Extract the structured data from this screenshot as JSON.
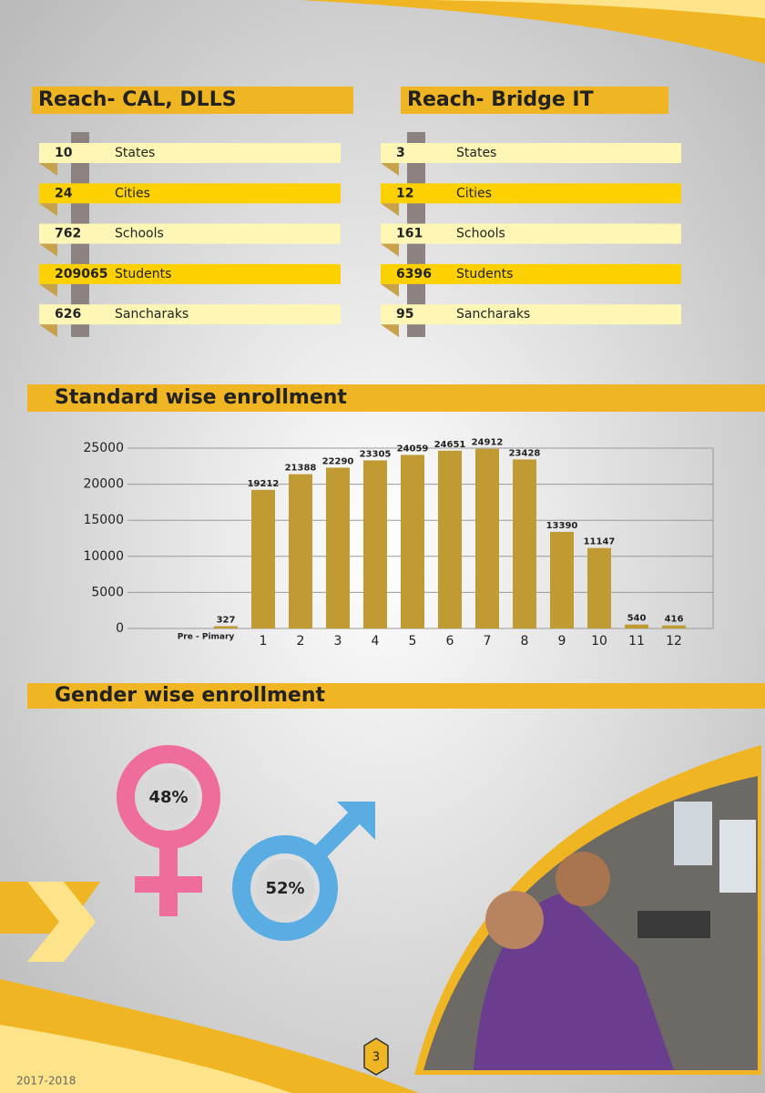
{
  "reach_cal": {
    "title": "Reach- CAL, DLLS",
    "rows": [
      {
        "number": 10,
        "label": "States"
      },
      {
        "number": 24,
        "label": "Cities"
      },
      {
        "number": 762,
        "label": "Schools"
      },
      {
        "number": 209065,
        "label": "Students"
      },
      {
        "number": 626,
        "label": "Sancharaks"
      }
    ]
  },
  "reach_bridge": {
    "title": "Reach- Bridge IT",
    "rows": [
      {
        "number": 3,
        "label": "States"
      },
      {
        "number": 12,
        "label": "Cities"
      },
      {
        "number": 161,
        "label": "Schools"
      },
      {
        "number": 6396,
        "label": "Students"
      },
      {
        "number": 95,
        "label": "Sancharaks"
      }
    ]
  },
  "chart_data": {
    "type": "bar",
    "title": "Standard wise enrollment",
    "categories": [
      "Pre - Pimary",
      "1",
      "2",
      "3",
      "4",
      "5",
      "6",
      "7",
      "8",
      "9",
      "10",
      "11",
      "12"
    ],
    "values": [
      327,
      19212,
      21388,
      22290,
      23305,
      24059,
      24651,
      24912,
      23428,
      13390,
      11147,
      540,
      416
    ],
    "color": "#c09a32",
    "ylim": [
      0,
      25000
    ],
    "yticks": [
      0,
      5000,
      10000,
      15000,
      20000,
      25000
    ],
    "grid": true
  },
  "gender": {
    "title": "Gender wise enrollment",
    "female": "48%",
    "male": "52%"
  },
  "footer": {
    "page": "3",
    "year": "2017-2018"
  }
}
